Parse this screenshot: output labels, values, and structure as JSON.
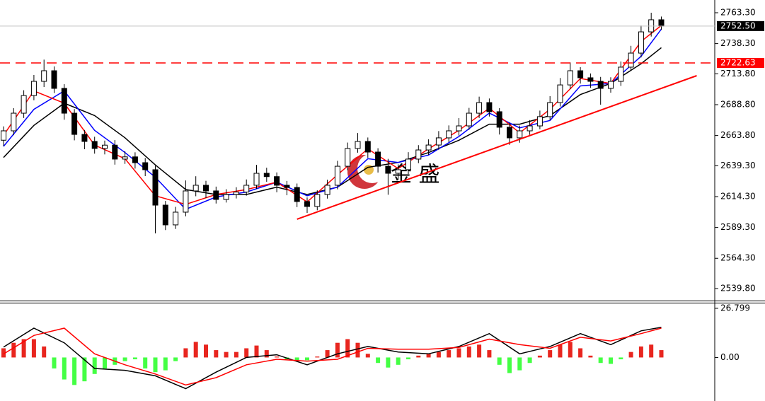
{
  "chart_data": [
    {
      "type": "candlestick",
      "watermark": "金 盛",
      "xlim": [
        -0.35,
        70.28
      ],
      "ylim": [
        2530.05,
        2773.62
      ],
      "yticks": [
        {
          "value": 2539.8,
          "label": "2539.80"
        },
        {
          "value": 2564.3,
          "label": "2564.30"
        },
        {
          "value": 2589.3,
          "label": "2589.30"
        },
        {
          "value": 2614.3,
          "label": "2614.30"
        },
        {
          "value": 2639.3,
          "label": "2639.30"
        },
        {
          "value": 2663.8,
          "label": "2663.80"
        },
        {
          "value": 2688.8,
          "label": "2688.80"
        },
        {
          "value": 2713.8,
          "label": "2713.80"
        },
        {
          "value": 2738.3,
          "label": "2738.30"
        },
        {
          "value": 2763.3,
          "label": "2763.30"
        }
      ],
      "open": [
        2660.0,
        2667.6,
        2681.9,
        2696.2,
        2707.7,
        2716.3,
        2702.0,
        2681.9,
        2664.7,
        2659.0,
        2653.3,
        2656.0,
        2644.7,
        2646.5,
        2641.8,
        2636.1,
        2607.4,
        2591.4,
        2601.7,
        2618.9,
        2623.5,
        2618.9,
        2612.0,
        2616.0,
        2618.0,
        2623.5,
        2633.2,
        2630.5,
        2623.5,
        2621.7,
        2610.3,
        2606.3,
        2616.0,
        2623.5,
        2638.9,
        2653.3,
        2659.0,
        2650.4,
        2638.9,
        2633.2,
        2636.1,
        2644.7,
        2652.1,
        2656.1,
        2661.9,
        2667.6,
        2671.6,
        2681.9,
        2690.5,
        2683.1,
        2670.5,
        2661.9,
        2667.6,
        2671.6,
        2679.1,
        2690.5,
        2704.8,
        2716.3,
        2710.6,
        2707.7,
        2702.0,
        2707.7,
        2719.2,
        2730.6,
        2747.8,
        2757.6
      ],
      "high": [
        2671.2,
        2686.0,
        2700.5,
        2712.9,
        2725.3,
        2719.8,
        2705.4,
        2685.2,
        2668.3,
        2662.8,
        2659.7,
        2660.1,
        2651.0,
        2650.2,
        2645.6,
        2639.3,
        2610.8,
        2606.0,
        2627.4,
        2630.8,
        2627.1,
        2622.4,
        2620.3,
        2621.9,
        2628.2,
        2640.0,
        2637.7,
        2633.9,
        2627.0,
        2624.9,
        2613.6,
        2619.4,
        2628.0,
        2643.3,
        2658.1,
        2665.8,
        2662.2,
        2653.5,
        2644.9,
        2640.4,
        2650.3,
        2656.0,
        2660.7,
        2667.4,
        2672.0,
        2677.9,
        2686.2,
        2695.3,
        2693.8,
        2686.0,
        2674.2,
        2671.8,
        2676.3,
        2684.0,
        2695.7,
        2710.4,
        2723.0,
        2719.2,
        2714.1,
        2711.3,
        2711.0,
        2723.8,
        2736.5,
        2752.9,
        2763.3,
        2760.2
      ],
      "low": [
        2655.3,
        2664.1,
        2678.0,
        2692.4,
        2703.1,
        2698.2,
        2676.6,
        2659.9,
        2652.7,
        2649.1,
        2648.5,
        2640.2,
        2640.8,
        2637.0,
        2630.9,
        2584.5,
        2587.2,
        2588.1,
        2598.3,
        2614.6,
        2613.2,
        2608.7,
        2609.5,
        2612.8,
        2615.1,
        2620.6,
        2626.3,
        2617.8,
        2615.4,
        2605.8,
        2601.1,
        2603.2,
        2612.7,
        2620.2,
        2635.6,
        2649.9,
        2645.7,
        2633.8,
        2615.8,
        2628.0,
        2632.6,
        2641.4,
        2648.0,
        2652.3,
        2658.5,
        2663.8,
        2668.4,
        2678.0,
        2679.2,
        2664.6,
        2656.3,
        2658.0,
        2664.4,
        2668.9,
        2676.2,
        2687.3,
        2701.5,
        2705.9,
        2702.4,
        2688.8,
        2698.5,
        2704.0,
        2716.3,
        2727.1,
        2744.0,
        2749.4
      ],
      "close": [
        2667.6,
        2681.9,
        2696.2,
        2707.7,
        2716.3,
        2702.0,
        2681.9,
        2664.7,
        2659.0,
        2653.3,
        2656.0,
        2644.7,
        2646.5,
        2641.8,
        2636.1,
        2607.4,
        2591.4,
        2601.7,
        2618.9,
        2623.5,
        2618.9,
        2612.0,
        2616.0,
        2618.0,
        2623.5,
        2633.2,
        2630.5,
        2623.5,
        2621.7,
        2610.3,
        2606.3,
        2616.0,
        2623.5,
        2638.9,
        2653.3,
        2659.0,
        2650.4,
        2638.9,
        2633.2,
        2636.1,
        2644.7,
        2652.1,
        2656.1,
        2661.9,
        2667.6,
        2671.6,
        2681.9,
        2690.5,
        2683.1,
        2670.5,
        2661.9,
        2667.6,
        2671.6,
        2679.1,
        2690.5,
        2704.8,
        2716.3,
        2710.6,
        2707.7,
        2702.0,
        2707.7,
        2719.2,
        2730.6,
        2747.8,
        2757.6,
        2752.5
      ],
      "overlays": [
        {
          "color": "#000000",
          "x": [
            0,
            3,
            6,
            9,
            12,
            15,
            18,
            21,
            24,
            27,
            30,
            33,
            36,
            39,
            42,
            45,
            48,
            51,
            54,
            57,
            60,
            63,
            65
          ],
          "values": [
            2646,
            2672,
            2690,
            2680,
            2662,
            2640,
            2620,
            2616,
            2616,
            2622,
            2616,
            2622,
            2638,
            2642,
            2650,
            2660,
            2673,
            2673,
            2680,
            2697,
            2706,
            2722,
            2735
          ]
        },
        {
          "color": "#0000ff",
          "x": [
            0,
            3,
            6,
            9,
            12,
            15,
            18,
            21,
            24,
            27,
            30,
            33,
            36,
            39,
            42,
            45,
            48,
            51,
            54,
            57,
            60,
            63,
            65
          ],
          "values": [
            2655,
            2685,
            2700,
            2668,
            2650,
            2630,
            2604,
            2614,
            2618,
            2626,
            2615,
            2622,
            2645,
            2642,
            2648,
            2663,
            2682,
            2670,
            2676,
            2704,
            2706,
            2728,
            2750
          ]
        },
        {
          "color": "#ff0000",
          "x": [
            0,
            3,
            6,
            9,
            12,
            15,
            18,
            21,
            24,
            27,
            30,
            33,
            36,
            39,
            42,
            45,
            48,
            51,
            54,
            57,
            60,
            63,
            65
          ],
          "values": [
            2664,
            2700,
            2690,
            2656,
            2645,
            2615,
            2608,
            2616,
            2620,
            2626,
            2610,
            2632,
            2653,
            2637,
            2653,
            2668,
            2686,
            2666,
            2685,
            2710,
            2706,
            2740,
            2753
          ]
        }
      ],
      "trendline": {
        "color": "#ff0000",
        "x": [
          29,
          68.5
        ],
        "values": [
          2596,
          2712.3
        ]
      },
      "price_lines": [
        {
          "value": 2752.5,
          "label": "2752.50",
          "color": "#000000",
          "style": "solid"
        },
        {
          "value": 2722.63,
          "label": "2722.63",
          "color": "#ff0000",
          "style": "dashed"
        }
      ]
    },
    {
      "type": "macd",
      "xlim": [
        -0.35,
        70.28
      ],
      "ylim": [
        -23.74,
        29.48
      ],
      "yticks": [
        {
          "value": 0,
          "label": "0.00"
        },
        26.799
      ],
      "up_color": "#e8261f",
      "down_color": "#44ff44",
      "histogram": [
        5,
        8,
        10,
        10,
        6,
        -6,
        -12,
        -15,
        -13,
        -9,
        -6,
        -4,
        -2,
        -1,
        -6,
        -8,
        -7,
        -2,
        5,
        8.5,
        7,
        4,
        3,
        3,
        5,
        6.5,
        4,
        0.5,
        -1,
        -2,
        -1.5,
        0.5,
        4,
        8,
        10,
        8,
        2,
        -3,
        -5.5,
        -4,
        -1,
        1,
        2,
        3,
        4,
        5,
        6,
        7,
        4,
        -4,
        -8.5,
        -7,
        -3,
        1,
        4,
        7,
        8.5,
        5,
        1,
        -3,
        -3.5,
        -1,
        3,
        6,
        7,
        4
      ],
      "lines": [
        {
          "color": "#000000",
          "x": [
            0,
            3,
            6,
            9,
            12,
            15,
            18,
            21,
            24,
            27,
            30,
            33,
            36,
            39,
            42,
            45,
            48,
            51,
            54,
            57,
            60,
            63,
            65
          ],
          "values": [
            5.7,
            16,
            8,
            -6,
            -7,
            -10,
            -17,
            -8,
            0,
            1.5,
            -4,
            2,
            6,
            3,
            2,
            6,
            13,
            2,
            6,
            13,
            7,
            14.5,
            16.5
          ]
        },
        {
          "color": "#ff0000",
          "x": [
            0,
            3,
            6,
            9,
            12,
            15,
            18,
            21,
            24,
            27,
            30,
            33,
            36,
            39,
            42,
            45,
            48,
            51,
            54,
            57,
            60,
            63,
            65
          ],
          "values": [
            1.9,
            12,
            16,
            2,
            -4,
            -9,
            -15,
            -11,
            -4,
            -1,
            -2,
            -1,
            5,
            4.5,
            4.5,
            5.5,
            10,
            7,
            5,
            11,
            9,
            13,
            16
          ]
        }
      ]
    }
  ]
}
